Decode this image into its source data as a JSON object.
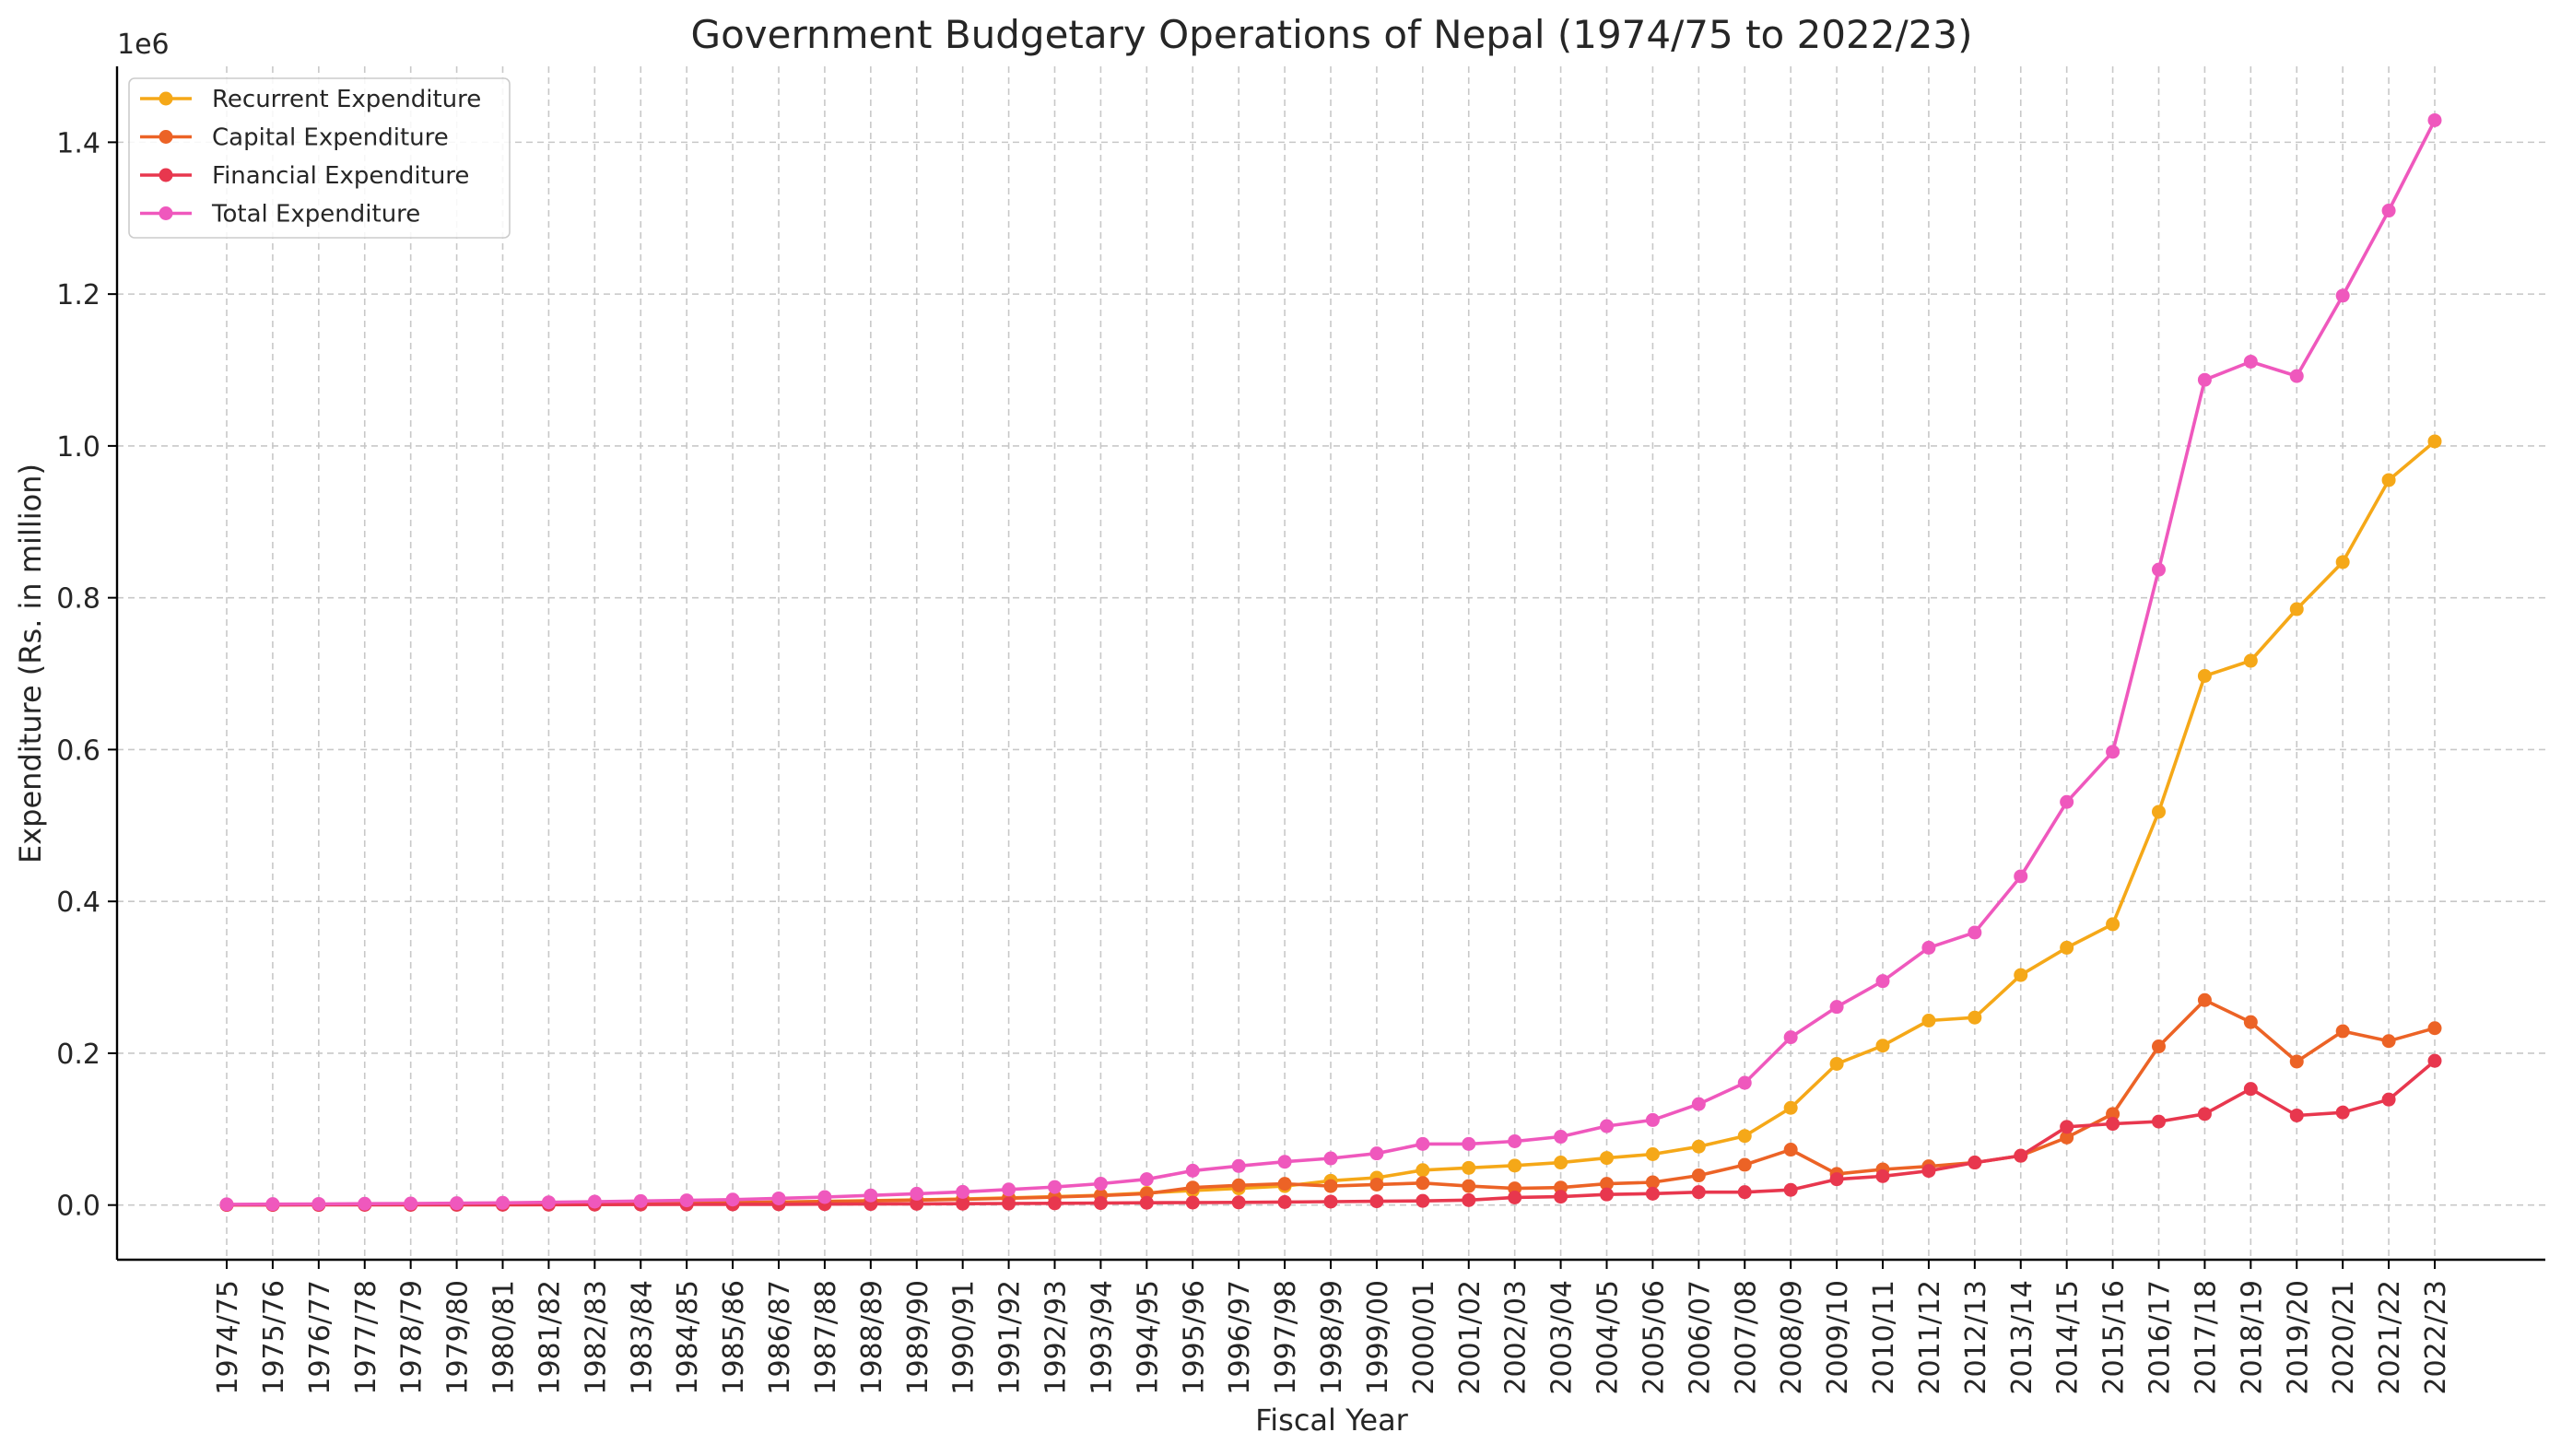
{
  "chart_data": {
    "type": "line",
    "title": "Government Budgetary Operations of Nepal (1974/75 to 2022/23)",
    "xlabel": "Fiscal Year",
    "ylabel": "Expenditure (Rs. in million)",
    "y_offset_label": "1e6",
    "y_tick_labels": [
      "0.0",
      "0.2",
      "0.4",
      "0.6",
      "0.8",
      "1.0",
      "1.2",
      "1.4"
    ],
    "y_ticks": [
      0,
      200000,
      400000,
      600000,
      800000,
      1000000,
      1200000,
      1400000
    ],
    "ylim": [
      -72000,
      1500000
    ],
    "grid": true,
    "legend_position": "upper-left",
    "categories": [
      "1974/75",
      "1975/76",
      "1976/77",
      "1977/78",
      "1978/79",
      "1979/80",
      "1980/81",
      "1981/82",
      "1982/83",
      "1983/84",
      "1984/85",
      "1985/86",
      "1986/87",
      "1987/88",
      "1988/89",
      "1989/90",
      "1990/91",
      "1991/92",
      "1992/93",
      "1993/94",
      "1994/95",
      "1995/96",
      "1996/97",
      "1997/98",
      "1998/99",
      "1999/00",
      "2000/01",
      "2001/02",
      "2002/03",
      "2003/04",
      "2004/05",
      "2005/06",
      "2006/07",
      "2007/08",
      "2008/09",
      "2009/10",
      "2010/11",
      "2011/12",
      "2012/13",
      "2013/14",
      "2014/15",
      "2015/16",
      "2016/17",
      "2017/18",
      "2018/19",
      "2019/20",
      "2020/21",
      "2021/22",
      "2022/23"
    ],
    "series": [
      {
        "name": "Recurrent Expenditure",
        "color": "#f5a818",
        "values": [
          500,
          600,
          700,
          800,
          900,
          1100,
          1300,
          1600,
          2000,
          2400,
          2800,
          3300,
          4000,
          4800,
          5800,
          6800,
          8000,
          9500,
          11000,
          13000,
          16000,
          19000,
          22000,
          25000,
          32000,
          36000,
          46000,
          49000,
          52000,
          56000,
          62000,
          67000,
          77000,
          91000,
          128000,
          186000,
          210000,
          243000,
          247000,
          303000,
          339000,
          370000,
          518000,
          697000,
          717000,
          785000,
          847000,
          955000,
          1006000
        ]
      },
      {
        "name": "Capital Expenditure",
        "color": "#ec6326",
        "values": [
          400,
          500,
          600,
          700,
          800,
          1000,
          1200,
          1500,
          1900,
          2200,
          2600,
          3000,
          3800,
          4600,
          5500,
          6500,
          7500,
          9000,
          10500,
          12500,
          15000,
          23000,
          26000,
          28000,
          25000,
          27000,
          29000,
          25000,
          22000,
          23000,
          28000,
          30000,
          39000,
          53000,
          73000,
          41000,
          47000,
          51000,
          56000,
          65000,
          89000,
          120000,
          209000,
          270000,
          241000,
          189000,
          229000,
          216000,
          233000
        ]
      },
      {
        "name": "Financial Expenditure",
        "color": "#e8374e",
        "values": [
          100,
          150,
          200,
          250,
          300,
          350,
          400,
          500,
          600,
          700,
          800,
          900,
          1000,
          1200,
          1400,
          1600,
          1800,
          2000,
          2300,
          2600,
          3000,
          3300,
          3500,
          4000,
          4500,
          5000,
          5500,
          6500,
          10000,
          11000,
          14000,
          15000,
          17000,
          17000,
          20000,
          34000,
          38000,
          45000,
          56000,
          65000,
          103000,
          107000,
          110000,
          120000,
          153000,
          118000,
          122000,
          139000,
          190000
        ]
      },
      {
        "name": "Total Expenditure",
        "color": "#ef58bd",
        "values": [
          1000,
          1250,
          1500,
          1750,
          2000,
          2450,
          2900,
          3600,
          4500,
          5300,
          6200,
          7200,
          8800,
          10600,
          12700,
          14900,
          17300,
          20500,
          23800,
          28100,
          34000,
          45300,
          51500,
          57000,
          61500,
          68000,
          80500,
          80500,
          84000,
          90000,
          104000,
          112000,
          133000,
          161000,
          221000,
          261000,
          295000,
          339000,
          359000,
          433000,
          531000,
          597000,
          837000,
          1087000,
          1111000,
          1092000,
          1198000,
          1310000,
          1429000
        ]
      }
    ]
  }
}
